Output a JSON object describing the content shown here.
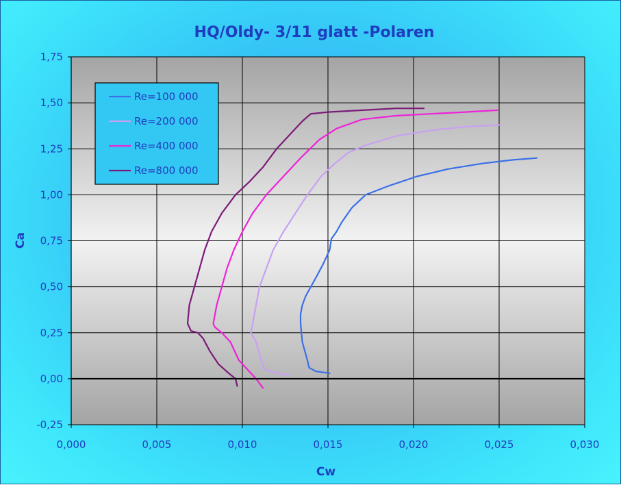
{
  "chart_data": {
    "type": "line",
    "title": "HQ/Oldy- 3/11 glatt -Polaren",
    "xlabel": "Cw",
    "ylabel": "Ca",
    "xlim": [
      0,
      0.03
    ],
    "ylim": [
      -0.25,
      1.75
    ],
    "x_ticks": [
      "0,000",
      "0,005",
      "0,010",
      "0,015",
      "0,020",
      "0,025",
      "0,030"
    ],
    "y_ticks": [
      "-0,25",
      "0,00",
      "0,25",
      "0,50",
      "0,75",
      "1,00",
      "1,25",
      "1,50",
      "1,75"
    ],
    "x_tick_values": [
      0,
      0.005,
      0.01,
      0.015,
      0.02,
      0.025,
      0.03
    ],
    "y_tick_values": [
      -0.25,
      0,
      0.25,
      0.5,
      0.75,
      1.0,
      1.25,
      1.5,
      1.75
    ],
    "grid": true,
    "legend_position": "top-left",
    "series": [
      {
        "name": "Re=100 000",
        "color": "#3a6fe8",
        "x": [
          0.0151,
          0.0143,
          0.0139,
          0.0138,
          0.0135,
          0.0134,
          0.0134,
          0.0135,
          0.0137,
          0.014,
          0.0143,
          0.0147,
          0.0151,
          0.0152,
          0.0155,
          0.0158,
          0.0164,
          0.0172,
          0.0186,
          0.0202,
          0.022,
          0.024,
          0.0258,
          0.0272
        ],
        "y": [
          0.03,
          0.04,
          0.06,
          0.1,
          0.2,
          0.3,
          0.35,
          0.4,
          0.45,
          0.5,
          0.55,
          0.62,
          0.7,
          0.76,
          0.8,
          0.85,
          0.93,
          1.0,
          1.05,
          1.1,
          1.14,
          1.17,
          1.19,
          1.2
        ]
      },
      {
        "name": "Re=200 000",
        "color": "#c9a0f2",
        "x": [
          0.0127,
          0.012,
          0.0113,
          0.0111,
          0.0108,
          0.0105,
          0.0106,
          0.0108,
          0.011,
          0.0114,
          0.0118,
          0.0124,
          0.0131,
          0.0138,
          0.0146,
          0.0154,
          0.0162,
          0.0172,
          0.019,
          0.021,
          0.023,
          0.0251
        ],
        "y": [
          0.02,
          0.03,
          0.05,
          0.1,
          0.2,
          0.25,
          0.3,
          0.4,
          0.5,
          0.6,
          0.7,
          0.8,
          0.9,
          1.0,
          1.1,
          1.17,
          1.23,
          1.27,
          1.32,
          1.35,
          1.37,
          1.38
        ]
      },
      {
        "name": "Re=400 000",
        "color": "#ee22d8",
        "x": [
          0.0112,
          0.0108,
          0.0104,
          0.0098,
          0.0093,
          0.0088,
          0.0084,
          0.0083,
          0.0085,
          0.0088,
          0.0091,
          0.0095,
          0.01,
          0.0106,
          0.0114,
          0.0124,
          0.0134,
          0.0145,
          0.0155,
          0.017,
          0.019,
          0.021,
          0.023,
          0.0249
        ],
        "y": [
          -0.05,
          0.0,
          0.04,
          0.1,
          0.2,
          0.25,
          0.28,
          0.3,
          0.4,
          0.5,
          0.6,
          0.7,
          0.8,
          0.9,
          1.0,
          1.1,
          1.2,
          1.3,
          1.36,
          1.41,
          1.43,
          1.44,
          1.45,
          1.46
        ]
      },
      {
        "name": "Re=800 000",
        "color": "#7a1a78",
        "x": [
          0.0097,
          0.0096,
          0.0092,
          0.0086,
          0.0081,
          0.0077,
          0.0074,
          0.007,
          0.0068,
          0.0069,
          0.0072,
          0.0075,
          0.0078,
          0.0082,
          0.0088,
          0.0096,
          0.0104,
          0.0112,
          0.012,
          0.0128,
          0.0135,
          0.014,
          0.015,
          0.017,
          0.019,
          0.0206
        ],
        "y": [
          -0.04,
          0.0,
          0.03,
          0.08,
          0.15,
          0.22,
          0.25,
          0.26,
          0.3,
          0.4,
          0.5,
          0.6,
          0.7,
          0.8,
          0.9,
          1.0,
          1.07,
          1.15,
          1.25,
          1.33,
          1.4,
          1.44,
          1.45,
          1.46,
          1.47,
          1.47
        ]
      }
    ]
  }
}
